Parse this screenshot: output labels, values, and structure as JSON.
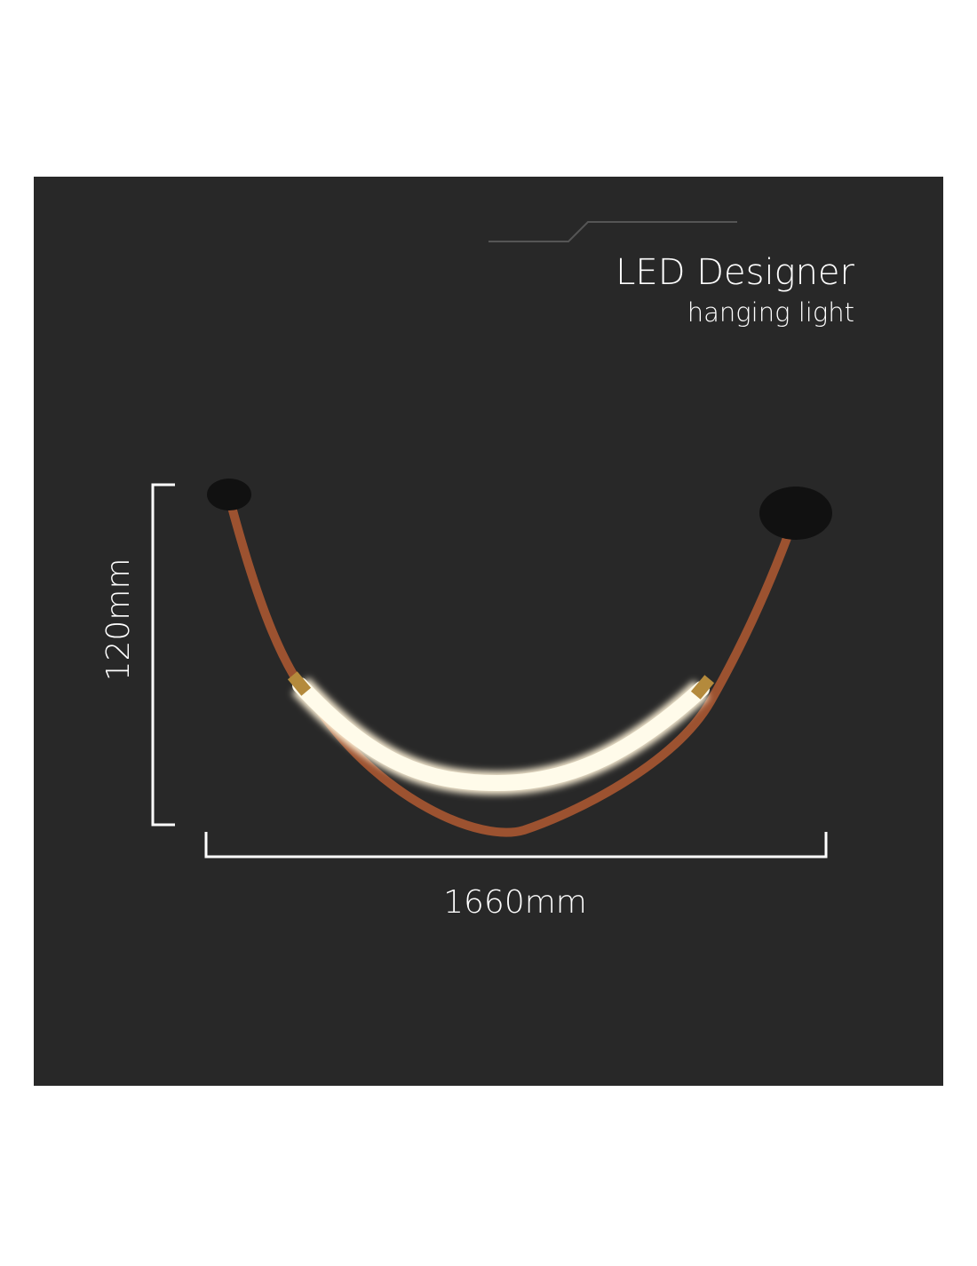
{
  "title": "LED Designer",
  "subtitle": "hanging light",
  "dimensions": {
    "height": "120mm",
    "width": "1660mm"
  }
}
